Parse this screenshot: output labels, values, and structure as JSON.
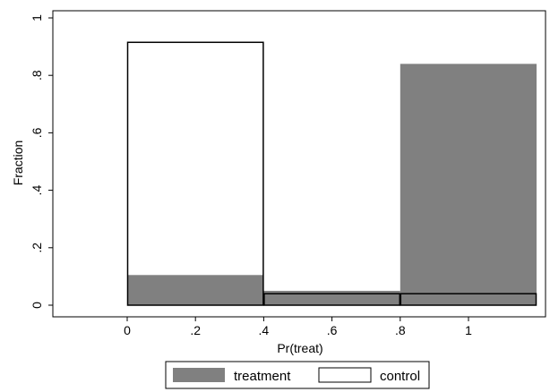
{
  "chart_data": {
    "type": "bar",
    "xlabel": "Pr(treat)",
    "ylabel": "Fraction",
    "xlim": [
      -0.2,
      1.2
    ],
    "ylim": [
      0,
      1
    ],
    "bins": [
      [
        0,
        0.4
      ],
      [
        0.4,
        0.8
      ],
      [
        0.8,
        1.2
      ]
    ],
    "series": [
      {
        "name": "treatment",
        "values": [
          0.105,
          0.05,
          0.84
        ],
        "style": "filled",
        "color": "#808080"
      },
      {
        "name": "control",
        "values": [
          0.915,
          0.04,
          0.04
        ],
        "style": "outline",
        "color": "#000000"
      }
    ],
    "x_ticks": [
      {
        "value": 0,
        "label": "0"
      },
      {
        "value": 0.2,
        "label": ".2"
      },
      {
        "value": 0.4,
        "label": ".4"
      },
      {
        "value": 0.6,
        "label": ".6"
      },
      {
        "value": 0.8,
        "label": ".8"
      },
      {
        "value": 1,
        "label": "1"
      }
    ],
    "y_ticks": [
      {
        "value": 0,
        "label": "0"
      },
      {
        "value": 0.2,
        "label": ".2"
      },
      {
        "value": 0.4,
        "label": ".4"
      },
      {
        "value": 0.6,
        "label": ".6"
      },
      {
        "value": 0.8,
        "label": ".8"
      },
      {
        "value": 1,
        "label": "1"
      }
    ],
    "grid": false,
    "legend_position": "bottom"
  }
}
